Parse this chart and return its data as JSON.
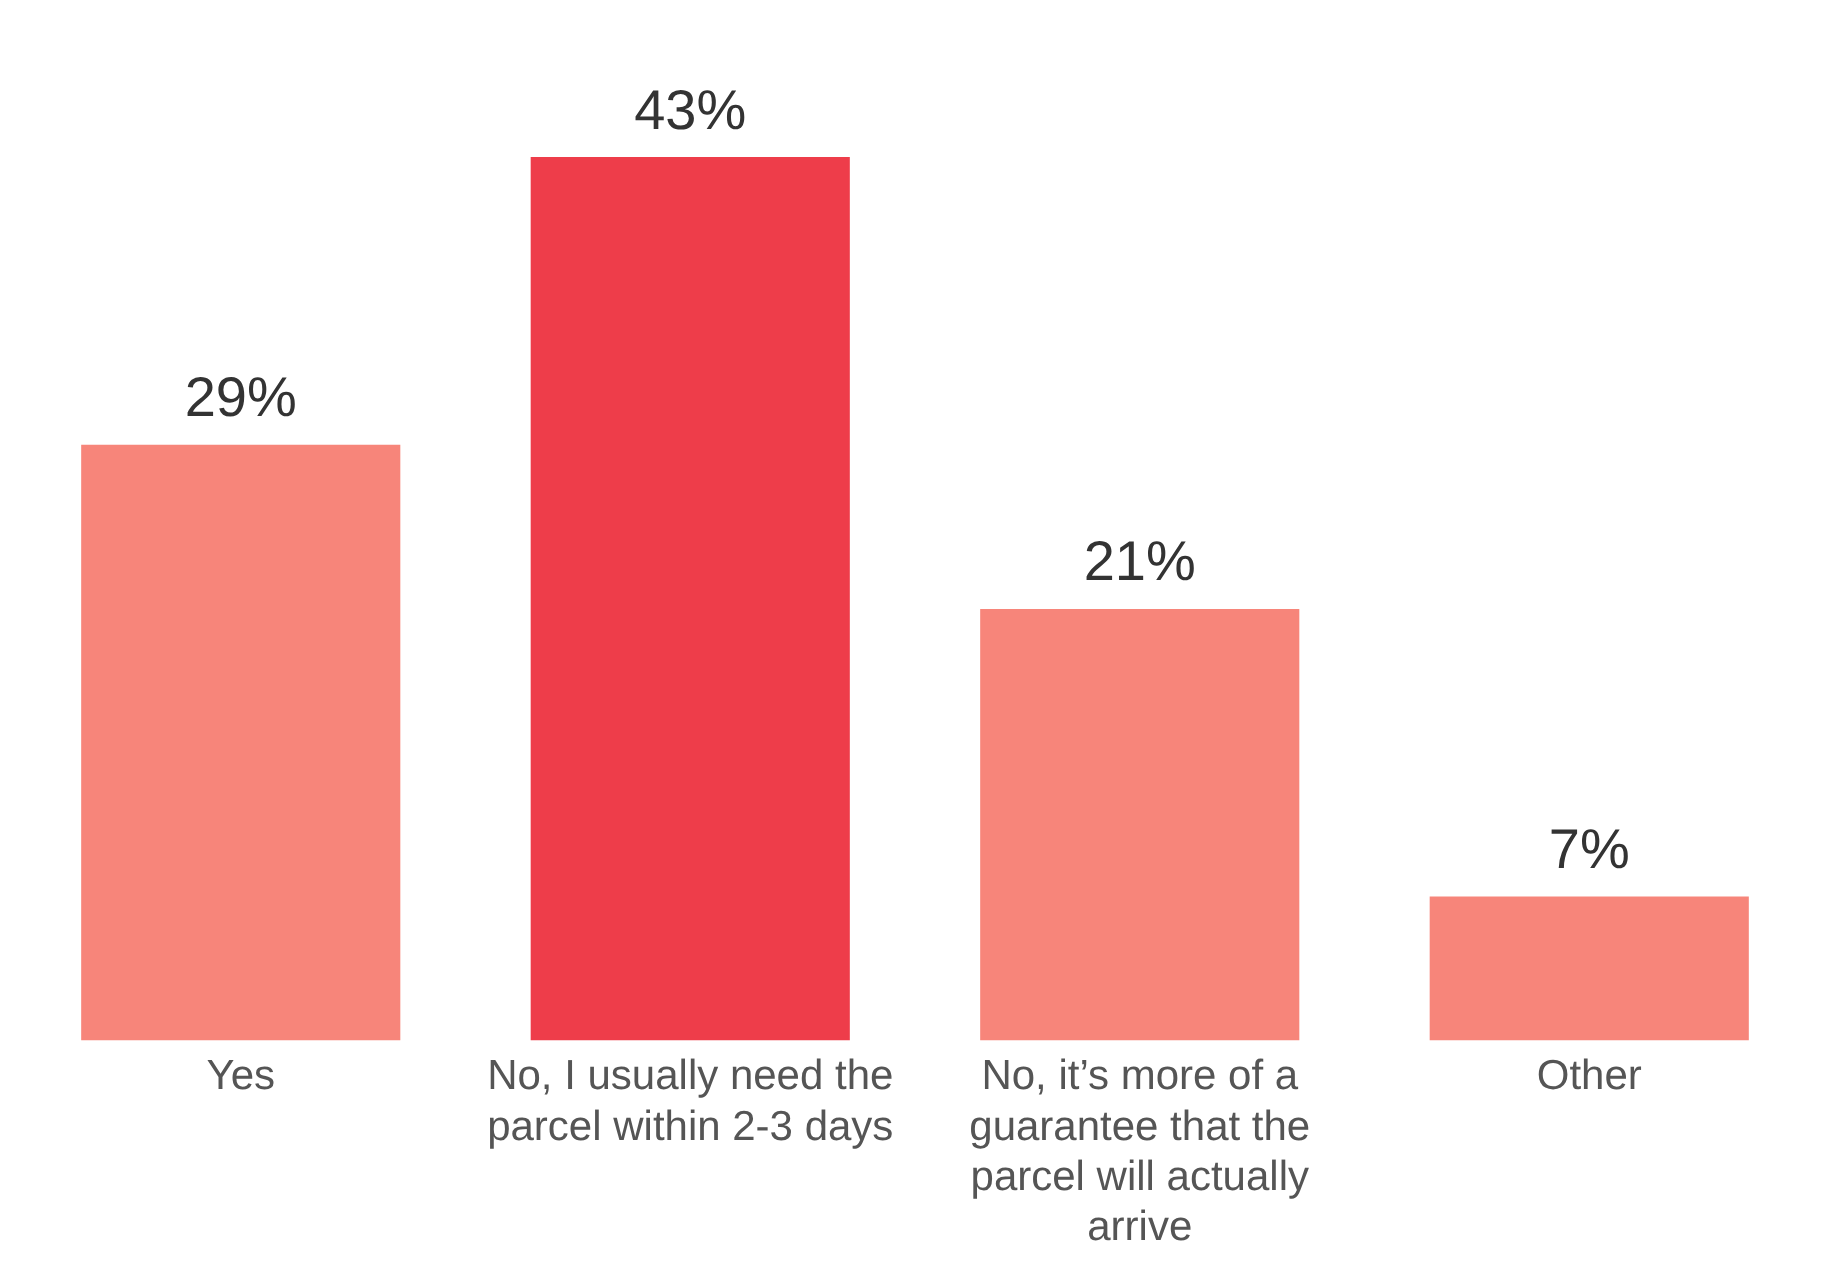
{
  "chart_data": {
    "type": "bar",
    "categories": [
      "Yes",
      "No, I usually need the parcel within 2-3 days",
      "No, it’s more of a guarantee that the parcel will actually arrive",
      "Other"
    ],
    "values": [
      29,
      43,
      21,
      7
    ],
    "colors": [
      "#f7857a",
      "#ee3d4a",
      "#f7857a",
      "#f7857a"
    ],
    "value_labels": [
      "29%",
      "43%",
      "21%",
      "7%"
    ],
    "grid": false,
    "legend": false
  }
}
